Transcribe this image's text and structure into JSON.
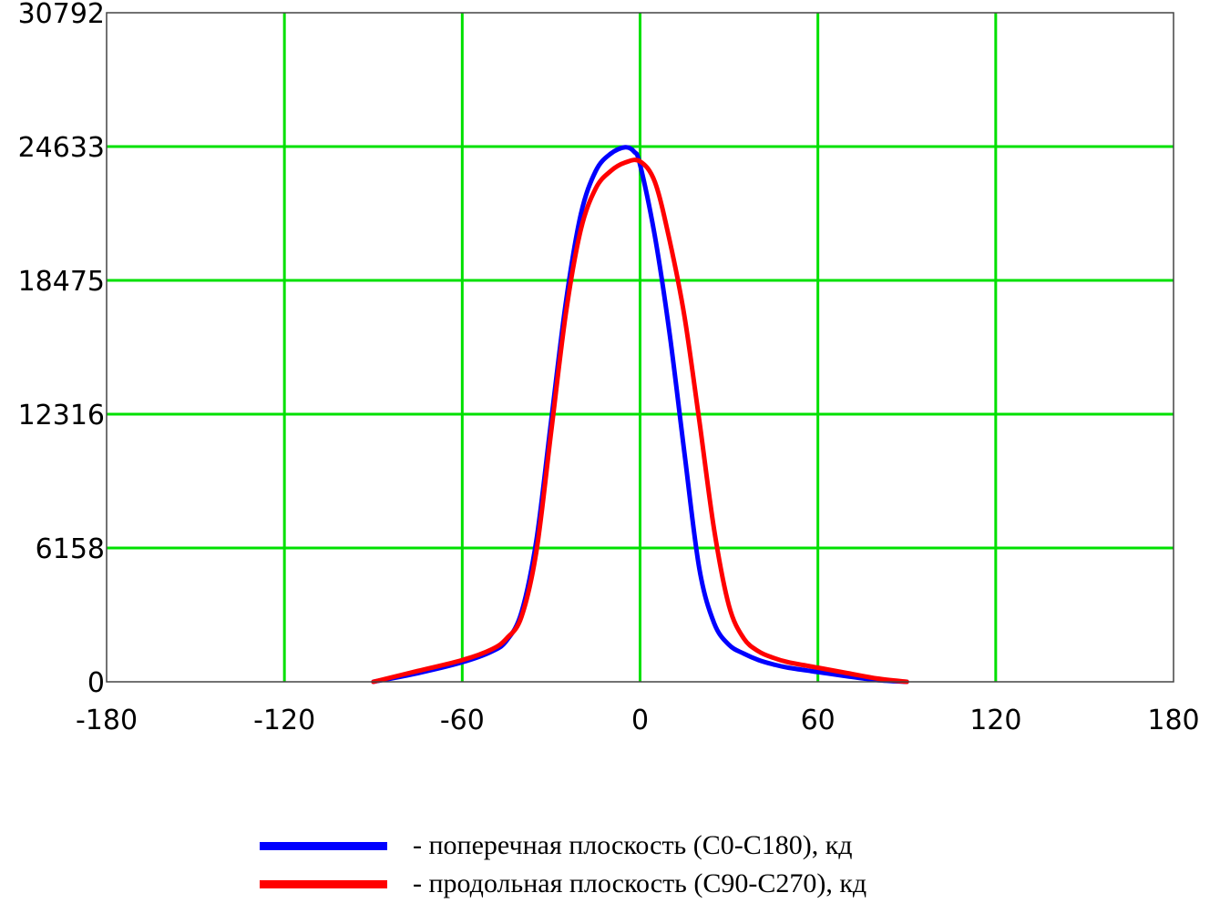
{
  "chart_data": {
    "type": "line",
    "xlim": [
      -180,
      180
    ],
    "ylim": [
      0,
      30792
    ],
    "x_ticks": [
      "-180",
      "-120",
      "-60",
      "0",
      "60",
      "120",
      "180"
    ],
    "y_ticks": [
      "0",
      "6158",
      "12316",
      "18475",
      "24633",
      "30792"
    ],
    "grid": true,
    "grid_color": "#00e000",
    "legend_position": "bottom",
    "series": [
      {
        "name": "- поперечная плоскость (C0-C180), кд",
        "color": "#0000ff",
        "x": [
          -90,
          -75,
          -60,
          -50,
          -45,
          -40,
          -35,
          -30,
          -25,
          -20,
          -15,
          -10,
          -5,
          -2,
          0,
          5,
          10,
          15,
          20,
          25,
          30,
          35,
          40,
          45,
          50,
          60,
          70,
          80,
          90
        ],
        "y": [
          0,
          400,
          900,
          1400,
          1900,
          3200,
          6500,
          12000,
          17500,
          21500,
          23500,
          24300,
          24600,
          24400,
          23800,
          20500,
          16000,
          10500,
          5200,
          2700,
          1700,
          1300,
          1000,
          800,
          650,
          450,
          250,
          80,
          0
        ]
      },
      {
        "name": "- продольная плоскость (C90-C270), кд",
        "color": "#ff0000",
        "x": [
          -90,
          -75,
          -60,
          -50,
          -45,
          -40,
          -35,
          -30,
          -25,
          -20,
          -15,
          -10,
          -5,
          0,
          5,
          10,
          15,
          20,
          25,
          30,
          35,
          40,
          45,
          50,
          60,
          70,
          80,
          90
        ],
        "y": [
          0,
          500,
          1000,
          1500,
          2000,
          3000,
          6000,
          11500,
          17000,
          20800,
          22700,
          23500,
          23900,
          23950,
          23000,
          20300,
          16800,
          12000,
          7000,
          3500,
          2000,
          1400,
          1100,
          900,
          650,
          400,
          150,
          0
        ]
      }
    ]
  },
  "legend": {
    "items": [
      {
        "label": "- поперечная плоскость (C0-C180), кд",
        "color": "#0000ff"
      },
      {
        "label": "- продольная плоскость (C90-C270), кд",
        "color": "#ff0000"
      }
    ]
  }
}
